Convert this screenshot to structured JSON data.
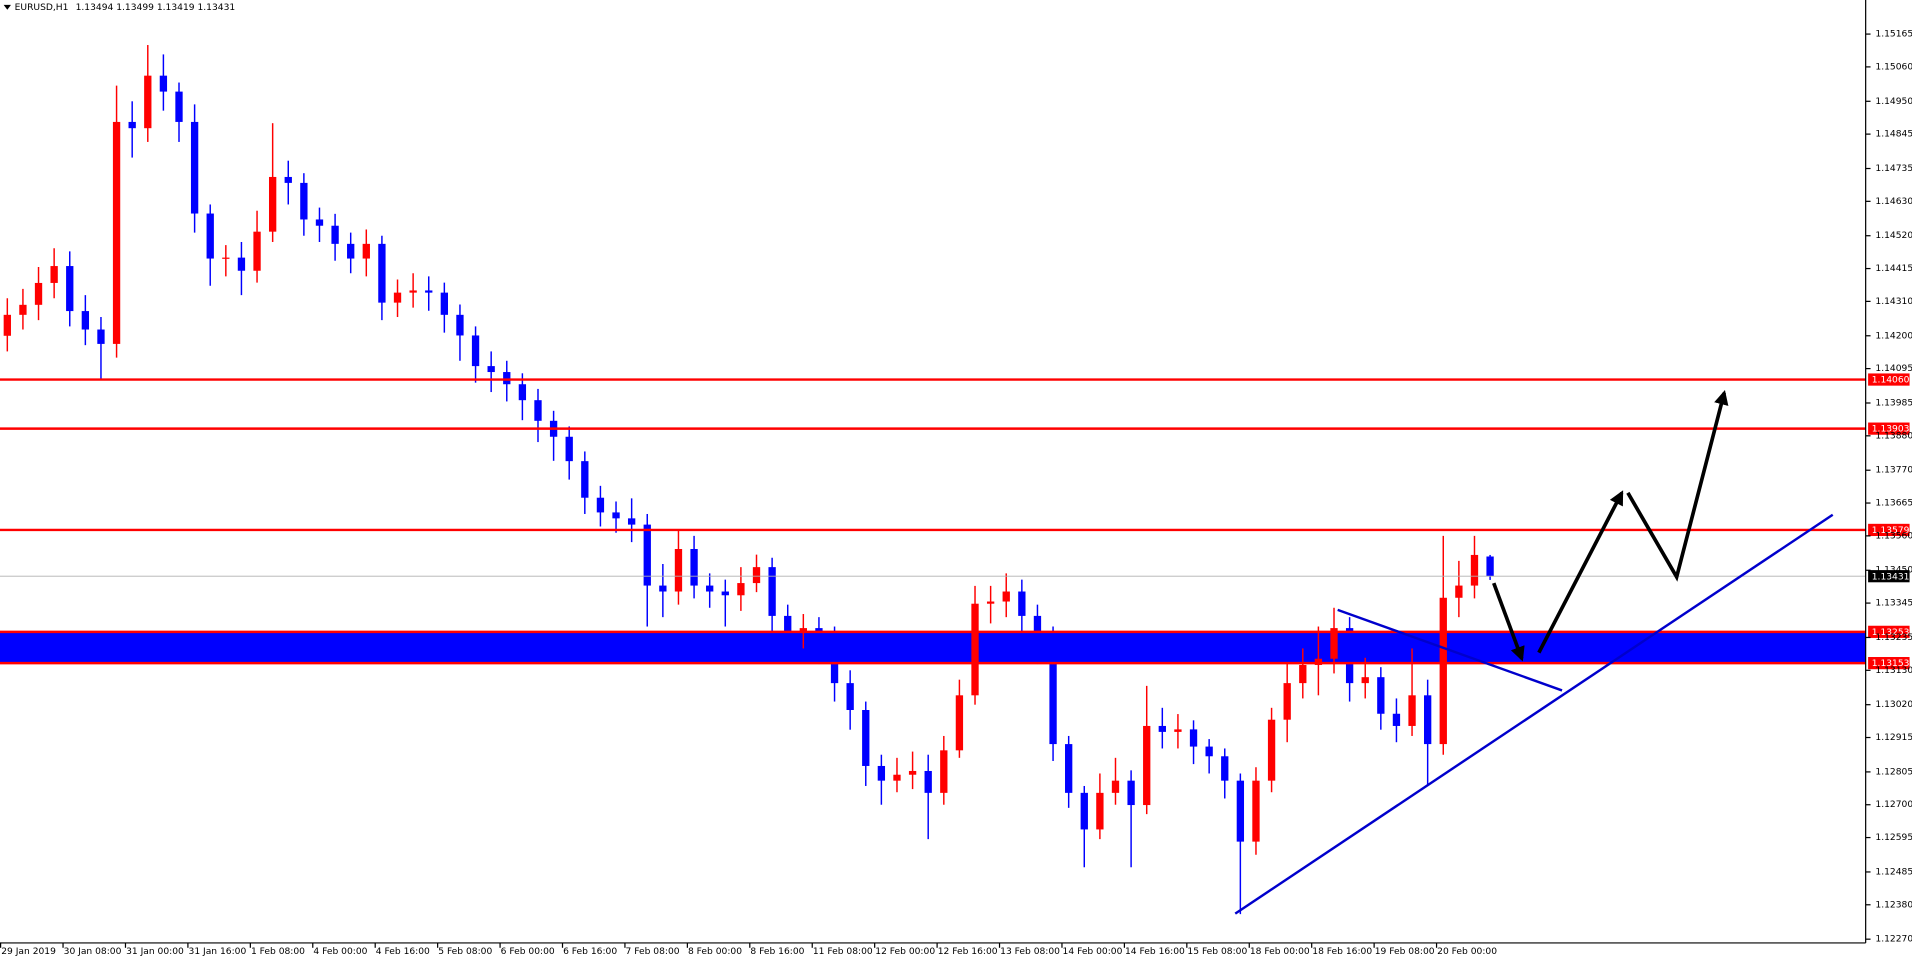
{
  "chart_data": {
    "type": "candlestick",
    "title": "EURUSD,H1",
    "header_ohlc": "1.13494 1.13499 1.13419 1.13431",
    "up_color": "#ff0000",
    "down_color": "#0000ff",
    "ylim": [
      1.12258,
      1.15274
    ],
    "yticks": [
      1.15165,
      {
        "value": 1.1506,
        "label": "1.15060"
      },
      {
        "value": 1.1495,
        "label": "1.14950"
      },
      1.14845,
      1.14735,
      {
        "value": 1.1463,
        "label": "1.14630"
      },
      {
        "value": 1.1452,
        "label": "1.14520"
      },
      1.14415,
      {
        "value": 1.1431,
        "label": "1.14310"
      },
      {
        "value": 1.142,
        "label": "1.14200"
      },
      1.14095,
      1.13985,
      {
        "value": 1.1388,
        "label": "1.13880"
      },
      {
        "value": 1.1377,
        "label": "1.13770"
      },
      1.13665,
      {
        "value": 1.1356,
        "label": "1.13560"
      },
      {
        "value": 1.1345,
        "label": "1.13450"
      },
      1.13345,
      1.13235,
      {
        "value": 1.1313,
        "label": "1.13130"
      },
      {
        "value": 1.1302,
        "label": "1.13020"
      },
      1.12915,
      1.12805,
      {
        "value": 1.127,
        "label": "1.12700"
      },
      1.12595,
      1.12485,
      {
        "value": 1.1238,
        "label": "1.12380"
      },
      {
        "value": 1.1227,
        "label": "1.12270"
      }
    ],
    "categories": [
      "29 Jan 2019",
      null,
      null,
      null,
      "30 Jan 08:00",
      null,
      null,
      null,
      "31 Jan 00:00",
      null,
      null,
      null,
      "31 Jan 16:00",
      null,
      null,
      null,
      "1 Feb 08:00",
      null,
      null,
      null,
      "4 Feb 00:00",
      null,
      null,
      null,
      "4 Feb 16:00",
      null,
      null,
      null,
      "5 Feb 08:00",
      null,
      null,
      null,
      "6 Feb 00:00",
      null,
      null,
      null,
      "6 Feb 16:00",
      null,
      null,
      null,
      "7 Feb 08:00",
      null,
      null,
      null,
      "8 Feb 00:00",
      null,
      null,
      null,
      "8 Feb 16:00",
      null,
      null,
      null,
      "11 Feb 08:00",
      null,
      null,
      null,
      "12 Feb 00:00",
      null,
      null,
      null,
      "12 Feb 16:00",
      null,
      null,
      null,
      "13 Feb 08:00",
      null,
      null,
      null,
      "14 Feb 00:00",
      null,
      null,
      null,
      "14 Feb 16:00",
      null,
      null,
      null,
      "15 Feb 08:00",
      null,
      null,
      null,
      "18 Feb 00:00",
      null,
      null,
      null,
      "18 Feb 16:00",
      null,
      null,
      null,
      "19 Feb 08:00",
      null,
      null,
      null,
      "20 Feb 00:00",
      null,
      null,
      null
    ],
    "ohlc": [
      [
        1.142,
        1.1432,
        1.1415,
        1.14267
      ],
      [
        1.14267,
        1.1435,
        1.1422,
        1.14299
      ],
      [
        1.14299,
        1.1442,
        1.1425,
        1.14369
      ],
      [
        1.14369,
        1.1448,
        1.1432,
        1.14423
      ],
      [
        1.14423,
        1.1447,
        1.1423,
        1.14279
      ],
      [
        1.14279,
        1.1433,
        1.1417,
        1.1422
      ],
      [
        1.1422,
        1.1426,
        1.1406,
        1.14174
      ],
      [
        1.14174,
        1.15,
        1.1413,
        1.14884
      ],
      [
        1.14884,
        1.1495,
        1.1477,
        1.14864
      ],
      [
        1.14864,
        1.1513,
        1.1482,
        1.15032
      ],
      [
        1.15032,
        1.151,
        1.1492,
        1.14981
      ],
      [
        1.14981,
        1.1501,
        1.1482,
        1.14884
      ],
      [
        1.14884,
        1.1494,
        1.1453,
        1.14591
      ],
      [
        1.14591,
        1.1462,
        1.1436,
        1.14447
      ],
      [
        1.14447,
        1.1449,
        1.1439,
        1.1445
      ],
      [
        1.1445,
        1.145,
        1.1433,
        1.14408
      ],
      [
        1.14408,
        1.146,
        1.1437,
        1.14533
      ],
      [
        1.14533,
        1.1488,
        1.145,
        1.14708
      ],
      [
        1.14708,
        1.1476,
        1.1462,
        1.14689
      ],
      [
        1.14689,
        1.1472,
        1.1452,
        1.14572
      ],
      [
        1.14572,
        1.1461,
        1.145,
        1.14552
      ],
      [
        1.14552,
        1.1459,
        1.1444,
        1.14494
      ],
      [
        1.14494,
        1.1453,
        1.144,
        1.14447
      ],
      [
        1.14447,
        1.1454,
        1.1439,
        1.14494
      ],
      [
        1.14494,
        1.1452,
        1.1425,
        1.14306
      ],
      [
        1.14306,
        1.1438,
        1.1426,
        1.14338
      ],
      [
        1.14338,
        1.144,
        1.1429,
        1.14345
      ],
      [
        1.14345,
        1.1439,
        1.1428,
        1.14338
      ],
      [
        1.14338,
        1.1437,
        1.1421,
        1.14267
      ],
      [
        1.14267,
        1.143,
        1.1412,
        1.14201
      ],
      [
        1.14201,
        1.1423,
        1.1405,
        1.14103
      ],
      [
        1.14103,
        1.1415,
        1.1402,
        1.14084
      ],
      [
        1.14084,
        1.1412,
        1.1399,
        1.14045
      ],
      [
        1.14045,
        1.1408,
        1.1393,
        1.13994
      ],
      [
        1.13994,
        1.1403,
        1.1386,
        1.13928
      ],
      [
        1.13928,
        1.1396,
        1.138,
        1.13877
      ],
      [
        1.13877,
        1.1391,
        1.1374,
        1.13799
      ],
      [
        1.13799,
        1.1383,
        1.1363,
        1.13682
      ],
      [
        1.13682,
        1.1372,
        1.1359,
        1.13635
      ],
      [
        1.13635,
        1.1367,
        1.1357,
        1.13616
      ],
      [
        1.13616,
        1.1368,
        1.1354,
        1.13596
      ],
      [
        1.13596,
        1.1363,
        1.1327,
        1.13401
      ],
      [
        1.13401,
        1.1347,
        1.133,
        1.13382
      ],
      [
        1.13382,
        1.1358,
        1.1334,
        1.13518
      ],
      [
        1.13518,
        1.1356,
        1.1336,
        1.13401
      ],
      [
        1.13401,
        1.1344,
        1.1333,
        1.13382
      ],
      [
        1.13382,
        1.1342,
        1.1327,
        1.1337
      ],
      [
        1.1337,
        1.1346,
        1.1332,
        1.13409
      ],
      [
        1.13409,
        1.135,
        1.1338,
        1.1346
      ],
      [
        1.1346,
        1.1349,
        1.1325,
        1.13304
      ],
      [
        1.13304,
        1.1334,
        1.132,
        1.13253
      ],
      [
        1.13253,
        1.1331,
        1.132,
        1.13265
      ],
      [
        1.13265,
        1.133,
        1.1315,
        1.13245
      ],
      [
        1.13245,
        1.1327,
        1.1303,
        1.13089
      ],
      [
        1.13089,
        1.1313,
        1.1294,
        1.13003
      ],
      [
        1.13003,
        1.1303,
        1.1276,
        1.12824
      ],
      [
        1.12824,
        1.1286,
        1.127,
        1.12777
      ],
      [
        1.12777,
        1.1285,
        1.1274,
        1.12796
      ],
      [
        1.12796,
        1.1287,
        1.1275,
        1.12808
      ],
      [
        1.12808,
        1.1286,
        1.1259,
        1.12738
      ],
      [
        1.12738,
        1.1292,
        1.127,
        1.12874
      ],
      [
        1.12874,
        1.131,
        1.1285,
        1.1305
      ],
      [
        1.1305,
        1.134,
        1.1302,
        1.13343
      ],
      [
        1.13343,
        1.134,
        1.1328,
        1.1335
      ],
      [
        1.1335,
        1.1344,
        1.133,
        1.13382
      ],
      [
        1.13382,
        1.1342,
        1.1325,
        1.13304
      ],
      [
        1.13304,
        1.1334,
        1.1315,
        1.13245
      ],
      [
        1.13245,
        1.1327,
        1.1284,
        1.12894
      ],
      [
        1.12894,
        1.1292,
        1.1269,
        1.12738
      ],
      [
        1.12738,
        1.1276,
        1.125,
        1.12621
      ],
      [
        1.12621,
        1.128,
        1.1259,
        1.12738
      ],
      [
        1.12738,
        1.1285,
        1.127,
        1.12777
      ],
      [
        1.12777,
        1.1281,
        1.125,
        1.12699
      ],
      [
        1.12699,
        1.1308,
        1.1267,
        1.12952
      ],
      [
        1.12952,
        1.1301,
        1.1288,
        1.12933
      ],
      [
        1.12933,
        1.1299,
        1.1288,
        1.12941
      ],
      [
        1.12941,
        1.1297,
        1.1283,
        1.12886
      ],
      [
        1.12886,
        1.1291,
        1.128,
        1.12855
      ],
      [
        1.12855,
        1.1288,
        1.1272,
        1.12777
      ],
      [
        1.12777,
        1.128,
        1.1235,
        1.12582
      ],
      [
        1.12582,
        1.1282,
        1.1254,
        1.12777
      ],
      [
        1.12777,
        1.1301,
        1.1274,
        1.12972
      ],
      [
        1.12972,
        1.1315,
        1.129,
        1.13089
      ],
      [
        1.13089,
        1.132,
        1.1304,
        1.13147
      ],
      [
        1.13147,
        1.1327,
        1.1305,
        1.13167
      ],
      [
        1.13167,
        1.1333,
        1.1312,
        1.13265
      ],
      [
        1.13265,
        1.133,
        1.1303,
        1.13089
      ],
      [
        1.13089,
        1.1317,
        1.1304,
        1.13108
      ],
      [
        1.13108,
        1.1314,
        1.1294,
        1.12991
      ],
      [
        1.12991,
        1.1304,
        1.129,
        1.12952
      ],
      [
        1.12952,
        1.132,
        1.1292,
        1.1305
      ],
      [
        1.1305,
        1.131,
        1.1276,
        1.12894
      ],
      [
        1.12894,
        1.1356,
        1.1286,
        1.13362
      ],
      [
        1.13362,
        1.1348,
        1.133,
        1.13401
      ],
      [
        1.13401,
        1.1356,
        1.1336,
        1.13499
      ],
      [
        1.13494,
        1.13499,
        1.13419,
        1.13431
      ]
    ],
    "levels": [
      {
        "value": 1.1406,
        "label": "1.14060",
        "color": "#ff0000"
      },
      {
        "value": 1.13903,
        "label": "1.13903",
        "color": "#ff0000"
      },
      {
        "value": 1.13579,
        "label": "1.13579",
        "color": "#ff0000"
      },
      {
        "value": 1.13253,
        "label": "1.13253",
        "color": "#ff0000"
      },
      {
        "value": 1.13153,
        "label": "1.13153",
        "color": "#ff0000"
      }
    ],
    "zone": {
      "low": 1.13153,
      "high": 1.13253,
      "color": "#0000ff"
    },
    "current": {
      "value": 1.13431,
      "label": "1.13431",
      "color": "#000000"
    }
  }
}
